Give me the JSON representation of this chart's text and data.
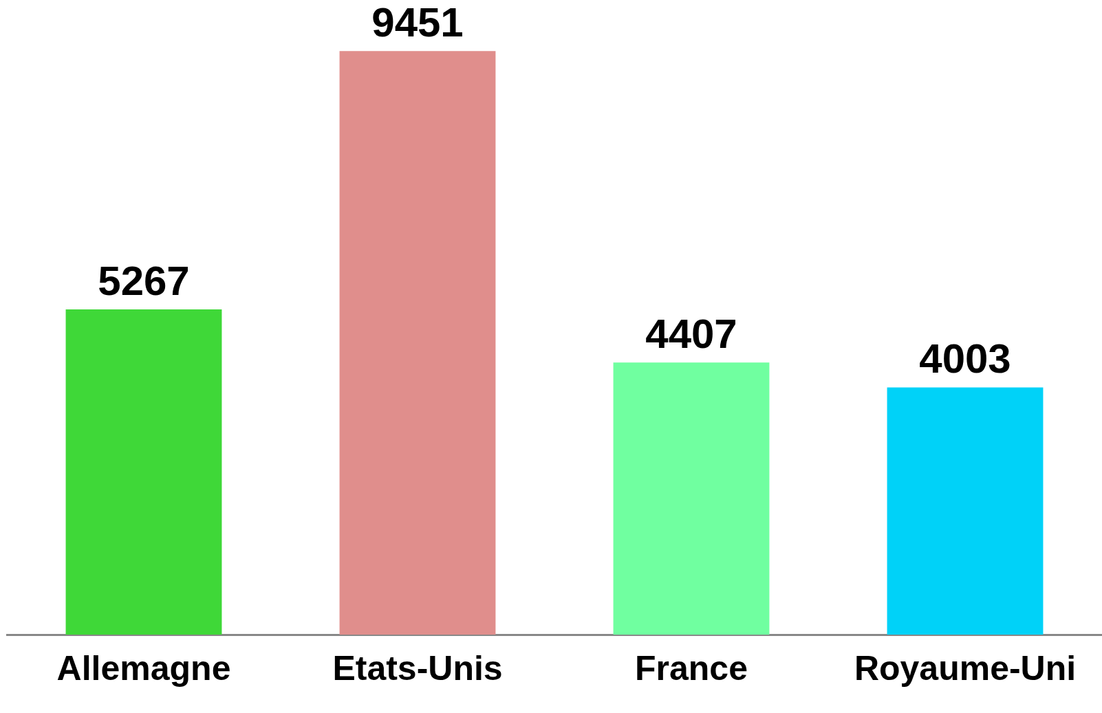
{
  "chart_data": {
    "type": "bar",
    "categories": [
      "Allemagne",
      "Etats-Unis",
      "France",
      "Royaume-Uni"
    ],
    "values": [
      5267,
      9451,
      4407,
      4003
    ],
    "colors": [
      "#3fd838",
      "#e08e8c",
      "#70ffa0",
      "#00d2f8"
    ],
    "data_labels": true,
    "grid": false,
    "legend": false,
    "tick_labels": "x"
  }
}
